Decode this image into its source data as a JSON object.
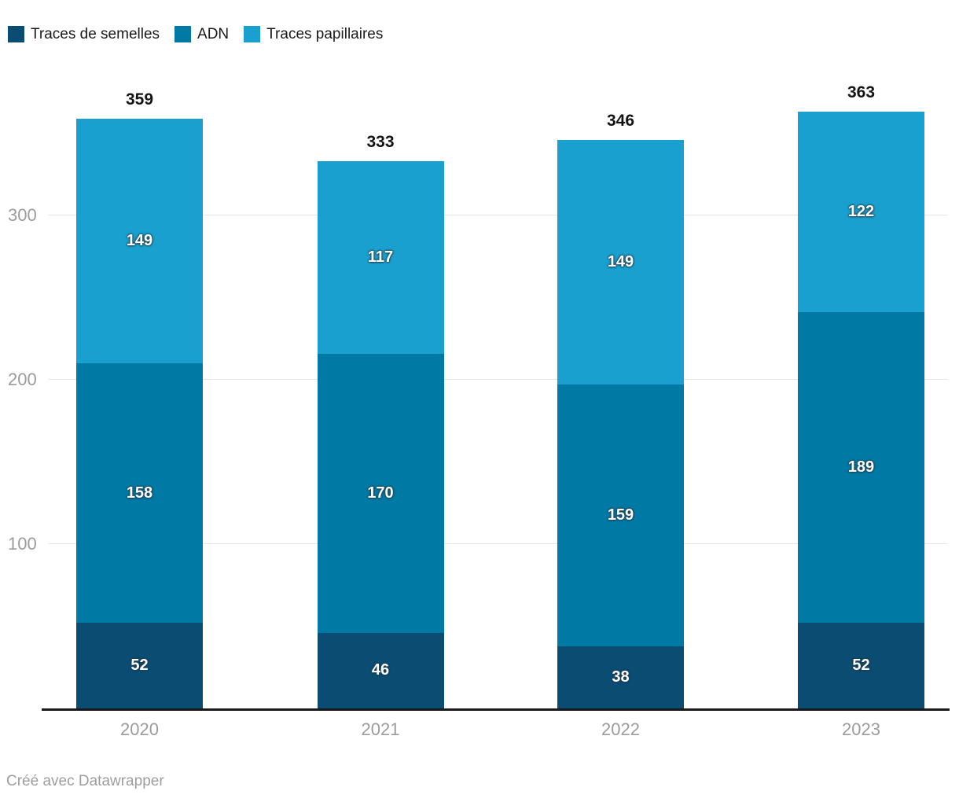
{
  "footer": {
    "credit": "Créé avec Datawrapper"
  },
  "chart_data": {
    "type": "bar",
    "stacked": true,
    "title": "",
    "xlabel": "",
    "ylabel": "",
    "categories": [
      "2020",
      "2021",
      "2022",
      "2023"
    ],
    "series": [
      {
        "name": "Traces de semelles",
        "color": "#0b4d72",
        "values": [
          52,
          46,
          38,
          52
        ]
      },
      {
        "name": "ADN",
        "color": "#0079a4",
        "values": [
          158,
          170,
          159,
          189
        ]
      },
      {
        "name": "Traces papillaires",
        "color": "#1aa0ce",
        "values": [
          149,
          117,
          149,
          122
        ]
      }
    ],
    "totals": [
      359,
      333,
      346,
      363
    ],
    "yticks": [
      100,
      200,
      300
    ],
    "ylim": [
      0,
      380
    ],
    "grid": true,
    "legend_position": "top-left",
    "value_labels": "inside-white",
    "total_labels": "above-bars"
  }
}
